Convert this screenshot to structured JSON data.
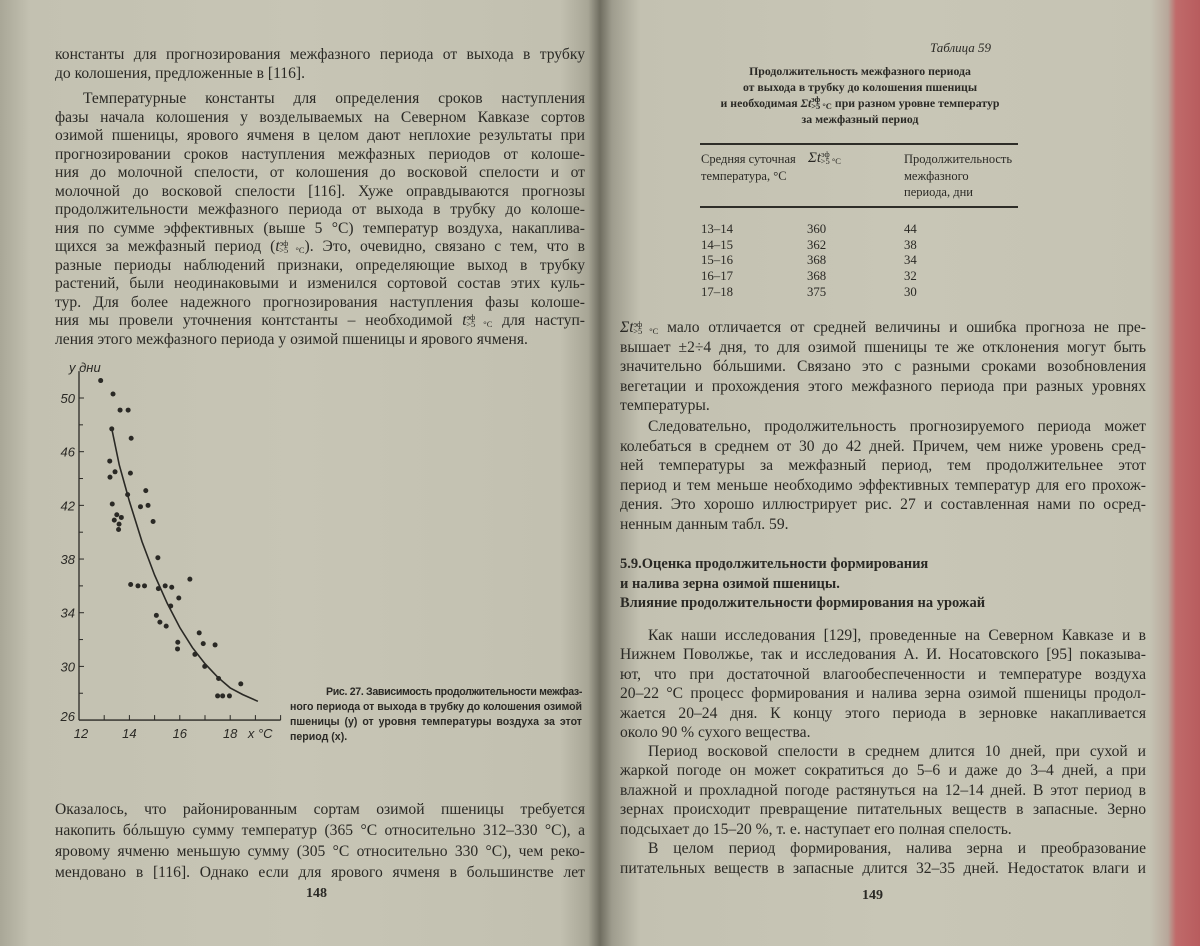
{
  "left_page": {
    "page_number": "148",
    "blocks": [
      {
        "lines": [
          "константы для прогнозирования межфазного периода от выхода в трубку",
          "до колошения, предложенные в [116]."
        ]
      },
      {
        "lines": [
          "Температурные константы для определения сроков наступления",
          "фазы начала колошения у возделываемых на Северном Кавказе сортов",
          "озимой пшеницы, ярового ячменя в целом дают неплохие результаты при",
          "прогнозировании сроков наступления межфазных периодов от колоше-",
          "ния до молочной спелости, от колошения до восковой спелости и от",
          "молочной до восковой спелости [116]. Хуже оправдываются прогнозы",
          "продолжительности межфазного периода от выхода в трубку до колоше-",
          "ния по сумме эффективных (выше 5 °С) температур воздуха, накаплива-",
          [
            "щихся за межфазный период (",
            {
              "base": "t",
              "sup": "эф",
              "sub": ">5 °C"
            },
            "). Это, очевидно, связано с тем, что в"
          ],
          "разные периоды наблюдений признаки, определяющие выход в трубку",
          "растений, были неодинаковыми и изменился сортовой состав этих куль-",
          "тур. Для более надежного прогнозирования наступления фазы колоше-",
          [
            "ния мы провели уточнения контстанты – необходимой ",
            {
              "base": "t",
              "sup": "эф",
              "sub": ">5 °C"
            },
            " для наступ-"
          ],
          "ления этого межфазного периода у озимой пшеницы и ярового ячменя."
        ]
      },
      {
        "lines": [
          "Оказалось, что районированным сортам озимой пшеницы требуется",
          "накопить бóльшую сумму температур (365 °С относительно 312–330 °С), а",
          "яровому ячменю меньшую сумму (305 °С относительно 330 °С), чем реко-",
          "мендовано в [116]. Однако если для ярового ячменя в большинстве лет"
        ]
      }
    ],
    "figure_caption": [
      "Рис. 27. Зависимость продолжительности межфаз-",
      "ного периода от выхода в трубку до колошения озимой",
      "пшеницы (y) от уровня температуры воздуха за этот",
      "период (x)."
    ]
  },
  "chart_data": {
    "type": "scatter",
    "title": "",
    "xlabel": "x °C",
    "ylabel": "y дни",
    "xlim": [
      12,
      20
    ],
    "ylim": [
      26,
      52
    ],
    "x_ticks": [
      "12",
      "14",
      "16",
      "18"
    ],
    "y_ticks": [
      "26",
      "30",
      "34",
      "38",
      "42",
      "46",
      "50"
    ],
    "grid": false,
    "points": [
      [
        12.86,
        51.3
      ],
      [
        13.35,
        50.3
      ],
      [
        13.63,
        49.1
      ],
      [
        13.95,
        49.1
      ],
      [
        13.3,
        47.7
      ],
      [
        14.07,
        47.0
      ],
      [
        13.22,
        45.3
      ],
      [
        13.43,
        44.5
      ],
      [
        13.23,
        44.1
      ],
      [
        14.04,
        44.4
      ],
      [
        13.93,
        42.8
      ],
      [
        14.65,
        43.1
      ],
      [
        13.32,
        42.1
      ],
      [
        14.44,
        41.9
      ],
      [
        14.74,
        42.0
      ],
      [
        13.5,
        41.3
      ],
      [
        13.68,
        41.1
      ],
      [
        13.4,
        40.9
      ],
      [
        13.59,
        40.6
      ],
      [
        13.57,
        40.2
      ],
      [
        14.94,
        40.8
      ],
      [
        15.13,
        38.1
      ],
      [
        14.05,
        36.1
      ],
      [
        14.34,
        36.0
      ],
      [
        14.6,
        36.0
      ],
      [
        15.15,
        35.8
      ],
      [
        15.42,
        36.0
      ],
      [
        15.68,
        35.9
      ],
      [
        16.4,
        36.5
      ],
      [
        15.96,
        35.1
      ],
      [
        15.64,
        34.5
      ],
      [
        15.07,
        33.8
      ],
      [
        15.21,
        33.3
      ],
      [
        15.46,
        33.0
      ],
      [
        16.77,
        32.5
      ],
      [
        15.92,
        31.8
      ],
      [
        15.91,
        31.3
      ],
      [
        16.93,
        31.7
      ],
      [
        17.4,
        31.6
      ],
      [
        16.6,
        30.9
      ],
      [
        16.99,
        30.0
      ],
      [
        17.54,
        29.1
      ],
      [
        18.42,
        28.7
      ],
      [
        17.5,
        27.8
      ],
      [
        17.7,
        27.8
      ],
      [
        17.97,
        27.8
      ]
    ],
    "fit_curve": [
      [
        13.3,
        47.7
      ],
      [
        13.6,
        45.0
      ],
      [
        14.0,
        42.3
      ],
      [
        14.5,
        39.3
      ],
      [
        15.0,
        36.8
      ],
      [
        15.5,
        34.7
      ],
      [
        16.0,
        32.9
      ],
      [
        16.5,
        31.4
      ],
      [
        17.0,
        30.2
      ],
      [
        17.5,
        29.2
      ],
      [
        18.0,
        28.4
      ],
      [
        18.5,
        27.9
      ],
      [
        19.1,
        27.4
      ]
    ]
  },
  "right_page": {
    "page_number": "149",
    "table": {
      "label": "Таблица 59",
      "title_lines": [
        [
          "Продолжительность межфазного периода"
        ],
        [
          "от выхода в трубку до колошения пшеницы"
        ],
        [
          "и необходимая ",
          {
            "base": "Σt",
            "sup": "эф",
            "sub": ">5 °C"
          },
          " при разном уровне температур"
        ],
        [
          "за межфазный период"
        ]
      ],
      "headers": {
        "temperature": [
          "Средняя суточная",
          "температура, °С"
        ],
        "sum": {
          "base": "Σt",
          "sup": "эф",
          "sub": ">5 °C"
        },
        "duration": [
          "Продолжительность",
          "межфазного",
          "периода, дни"
        ]
      },
      "rows": [
        [
          "13–14",
          "360",
          "44"
        ],
        [
          "14–15",
          "362",
          "38"
        ],
        [
          "15–16",
          "368",
          "34"
        ],
        [
          "16–17",
          "368",
          "32"
        ],
        [
          "17–18",
          "375",
          "30"
        ]
      ]
    },
    "blocks": [
      {
        "lines": [
          [
            {
              "base": "Σt",
              "sup": "эф",
              "sub": ">5 °C"
            },
            " мало отличается от средней величины и ошибка прогноза не пре-"
          ],
          "вышает ±2÷4 дня, то для озимой пшеницы те же отклонения могут быть",
          "значительно бóльшими. Связано это с разными сроками возобновления",
          "вегетации и прохождения этого межфазного периода при разных уровнях",
          "температуры."
        ]
      },
      {
        "lines": [
          "Следовательно, продолжительность прогнозируемого периода может",
          "колебаться в среднем от 30 до 42 дней. Причем, чем ниже уровень сред-",
          "ней температуры за межфазный период, тем продолжительнее этот",
          "период и тем меньше необходимо эффективных температур для его прохож-",
          "дения. Это хорошо иллюстрирует рис. 27 и составленная нами по осред-",
          "ненным данным табл. 59."
        ]
      },
      {
        "lines": [
          "5.9.Оценка продолжительности формирования",
          "и налива зерна озимой пшеницы.",
          "Влияние продолжительности формирования на урожай"
        ]
      },
      {
        "lines": [
          "Как наши исследования [129], проведенные на Северном Кавказе и в",
          "Нижнем Поволжье, так и исследования А. И. Носатовского [95] показыва-",
          "ют, что при достаточной влагообеспеченности и температуре воздуха",
          "20–22 °С процесс формирования и налива зерна озимой пшеницы продол-",
          "жается 20–24 дня. К концу этого периода в зерновке накапливается",
          "около 90 % сухого вещества."
        ]
      },
      {
        "lines": [
          "Период восковой спелости в среднем длится 10 дней, при сухой и",
          "жаркой погоде он может сократиться до 5–6 и даже до 3–4 дней, а при",
          "влажной и прохладной погоде растянуться на 12–14 дней. В этот период в",
          "зернах происходит превращение питательных веществ в запасные. Зерно",
          "подсыхает до 15–20 %, т. е. наступает его полная спелость."
        ]
      },
      {
        "lines": [
          "В целом период формирования, налива зерна и преобразование",
          "питательных веществ в запасные длится 32–35 дней. Недостаток влаги и"
        ]
      }
    ]
  }
}
